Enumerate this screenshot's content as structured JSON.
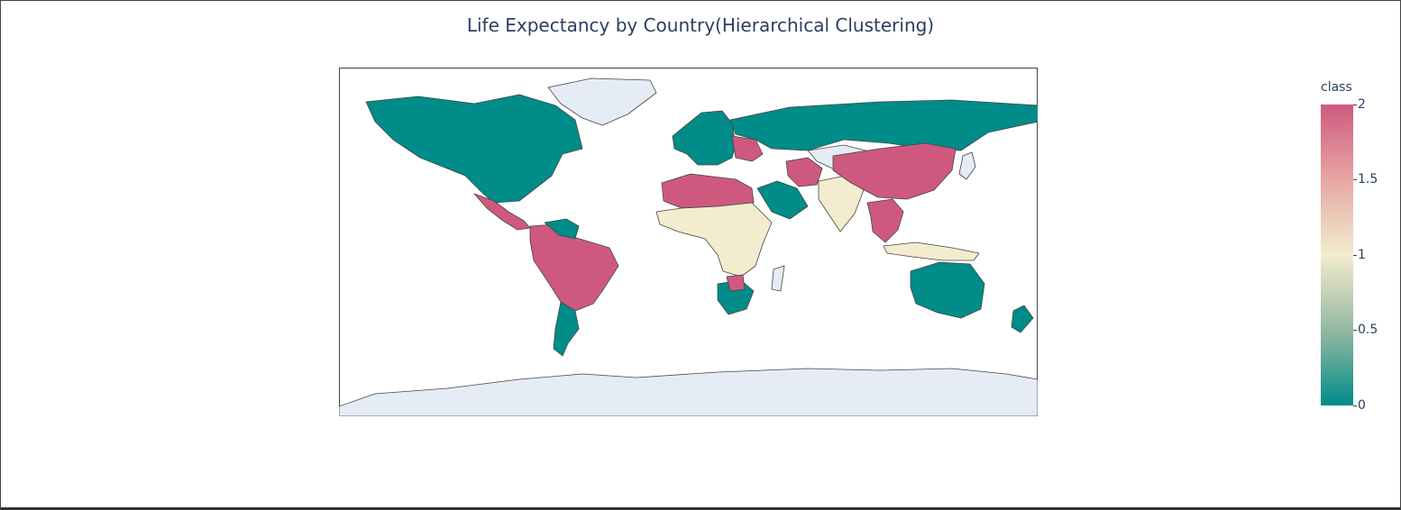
{
  "title": "Life Expectancy by Country(Hierarchical Clustering)",
  "chart_data": {
    "type": "choropleth",
    "title": "Life Expectancy by Country(Hierarchical Clustering)",
    "colorbar": {
      "title": "class",
      "range": [
        0,
        2
      ],
      "ticks": [
        "0",
        "0.5",
        "1",
        "1.5",
        "2"
      ],
      "colorscale": [
        "#008c89",
        "#94b8a0",
        "#f3ecce",
        "#e6a7a2",
        "#cf597e"
      ]
    },
    "no_data_color": "#e5ecf6",
    "regions": [
      {
        "name": "North America",
        "class": 0
      },
      {
        "name": "Greenland",
        "class": null
      },
      {
        "name": "Central America",
        "class": 2
      },
      {
        "name": "South America North",
        "class": 2
      },
      {
        "name": "Venezuela",
        "class": 0
      },
      {
        "name": "Southern Cone",
        "class": 0
      },
      {
        "name": "Western Europe",
        "class": 0
      },
      {
        "name": "Eastern Europe",
        "class": 2
      },
      {
        "name": "Russia",
        "class": 0
      },
      {
        "name": "North Africa",
        "class": 2
      },
      {
        "name": "Sub-Saharan Africa",
        "class": 1
      },
      {
        "name": "Southern Africa",
        "class": 0
      },
      {
        "name": "Botswana",
        "class": 2
      },
      {
        "name": "Madagascar",
        "class": null
      },
      {
        "name": "Arabia",
        "class": 0
      },
      {
        "name": "Iran",
        "class": 2
      },
      {
        "name": "Central Asia",
        "class": null
      },
      {
        "name": "South Asia",
        "class": 1
      },
      {
        "name": "China",
        "class": 2
      },
      {
        "name": "Southeast Asia",
        "class": 2
      },
      {
        "name": "Japan",
        "class": null
      },
      {
        "name": "Indonesia",
        "class": 1
      },
      {
        "name": "Australia",
        "class": 0
      },
      {
        "name": "New Zealand",
        "class": 0
      },
      {
        "name": "Antarctica",
        "class": null
      }
    ]
  }
}
